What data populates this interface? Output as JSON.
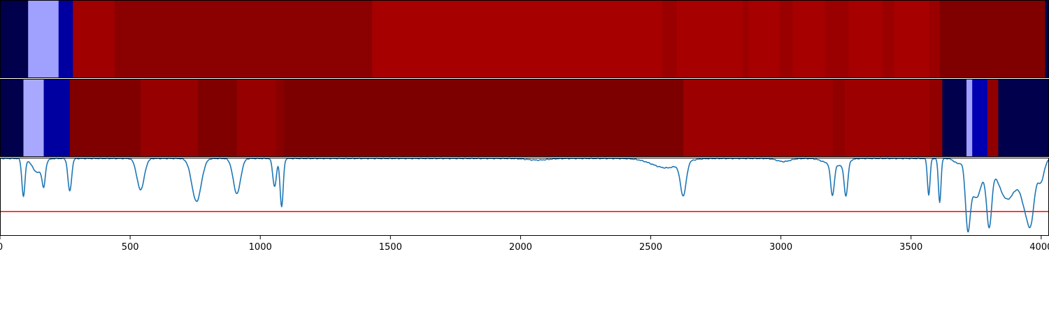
{
  "chart_data": [
    {
      "type": "heatmap",
      "x_range": [
        0,
        4030
      ],
      "segments": [
        {
          "from": 0,
          "to": 108,
          "color": "#00004c"
        },
        {
          "from": 108,
          "to": 225,
          "color": "#a0a0ff"
        },
        {
          "from": 225,
          "to": 280,
          "color": "#0000a0"
        },
        {
          "from": 280,
          "to": 440,
          "color": "#a00000"
        },
        {
          "from": 440,
          "to": 1430,
          "color": "#8b0000"
        },
        {
          "from": 1430,
          "to": 2545,
          "color": "#a60000"
        },
        {
          "from": 2545,
          "to": 2600,
          "color": "#9a0000"
        },
        {
          "from": 2600,
          "to": 2855,
          "color": "#a60000"
        },
        {
          "from": 2855,
          "to": 2875,
          "color": "#9a0000"
        },
        {
          "from": 2875,
          "to": 2995,
          "color": "#a60000"
        },
        {
          "from": 2995,
          "to": 3045,
          "color": "#9a0000"
        },
        {
          "from": 3045,
          "to": 3170,
          "color": "#a60000"
        },
        {
          "from": 3170,
          "to": 3260,
          "color": "#9a0000"
        },
        {
          "from": 3260,
          "to": 3390,
          "color": "#a60000"
        },
        {
          "from": 3390,
          "to": 3435,
          "color": "#9a0000"
        },
        {
          "from": 3435,
          "to": 3570,
          "color": "#a60000"
        },
        {
          "from": 3570,
          "to": 3610,
          "color": "#9a0000"
        },
        {
          "from": 3610,
          "to": 4015,
          "color": "#800000"
        },
        {
          "from": 4015,
          "to": 4030,
          "color": "#00004c"
        }
      ]
    },
    {
      "type": "heatmap",
      "x_range": [
        0,
        4030
      ],
      "segments": [
        {
          "from": 0,
          "to": 90,
          "color": "#00004c"
        },
        {
          "from": 90,
          "to": 168,
          "color": "#a8a8ff"
        },
        {
          "from": 168,
          "to": 268,
          "color": "#0000a0"
        },
        {
          "from": 268,
          "to": 540,
          "color": "#800000"
        },
        {
          "from": 540,
          "to": 760,
          "color": "#960000"
        },
        {
          "from": 760,
          "to": 910,
          "color": "#800000"
        },
        {
          "from": 910,
          "to": 1060,
          "color": "#960000"
        },
        {
          "from": 1060,
          "to": 1090,
          "color": "#8a0000"
        },
        {
          "from": 1090,
          "to": 2625,
          "color": "#7c0000"
        },
        {
          "from": 2625,
          "to": 3200,
          "color": "#9c0000"
        },
        {
          "from": 3200,
          "to": 3245,
          "color": "#900000"
        },
        {
          "from": 3245,
          "to": 3570,
          "color": "#9c0000"
        },
        {
          "from": 3570,
          "to": 3620,
          "color": "#900000"
        },
        {
          "from": 3620,
          "to": 3713,
          "color": "#00004c"
        },
        {
          "from": 3713,
          "to": 3735,
          "color": "#a0a0ff"
        },
        {
          "from": 3735,
          "to": 3793,
          "color": "#0000b0"
        },
        {
          "from": 3793,
          "to": 3835,
          "color": "#900000"
        },
        {
          "from": 3835,
          "to": 4030,
          "color": "#00004c"
        }
      ]
    },
    {
      "type": "line",
      "x_range": [
        0,
        4030
      ],
      "y_range": [
        0,
        1
      ],
      "ticks": [
        {
          "value": 0,
          "label": "0"
        },
        {
          "value": 500,
          "label": "500"
        },
        {
          "value": 1000,
          "label": "1000"
        },
        {
          "value": 1500,
          "label": "1500"
        },
        {
          "value": 2000,
          "label": "2000"
        },
        {
          "value": 2500,
          "label": "2500"
        },
        {
          "value": 3000,
          "label": "3000"
        },
        {
          "value": 3500,
          "label": "3500"
        },
        {
          "value": 4000,
          "label": "4000"
        }
      ],
      "threshold": {
        "value": 0.31,
        "color": "#ff0000"
      },
      "series_color": "#1f77b4",
      "baseline": 0.99,
      "dips": [
        {
          "center": 90,
          "depth": 0.48,
          "width": 6
        },
        {
          "center": 145,
          "depth": 0.18,
          "width": 20
        },
        {
          "center": 168,
          "depth": 0.28,
          "width": 6
        },
        {
          "center": 268,
          "depth": 0.42,
          "width": 7
        },
        {
          "center": 540,
          "depth": 0.4,
          "width": 14
        },
        {
          "center": 755,
          "depth": 0.55,
          "width": 18
        },
        {
          "center": 910,
          "depth": 0.45,
          "width": 14
        },
        {
          "center": 1055,
          "depth": 0.36,
          "width": 7
        },
        {
          "center": 1082,
          "depth": 0.62,
          "width": 6
        },
        {
          "center": 2065,
          "depth": 0.02,
          "width": 40
        },
        {
          "center": 2560,
          "depth": 0.12,
          "width": 55
        },
        {
          "center": 2625,
          "depth": 0.42,
          "width": 11
        },
        {
          "center": 3010,
          "depth": 0.04,
          "width": 25
        },
        {
          "center": 3180,
          "depth": 0.05,
          "width": 25
        },
        {
          "center": 3198,
          "depth": 0.4,
          "width": 7
        },
        {
          "center": 3250,
          "depth": 0.42,
          "width": 7
        },
        {
          "center": 3230,
          "depth": 0.08,
          "width": 25
        },
        {
          "center": 3568,
          "depth": 0.47,
          "width": 5
        },
        {
          "center": 3610,
          "depth": 0.56,
          "width": 5
        },
        {
          "center": 3680,
          "depth": 0.06,
          "width": 15
        },
        {
          "center": 3718,
          "depth": 0.76,
          "width": 9
        },
        {
          "center": 3750,
          "depth": 0.5,
          "width": 22
        },
        {
          "center": 3800,
          "depth": 0.78,
          "width": 10
        },
        {
          "center": 3870,
          "depth": 0.52,
          "width": 35
        },
        {
          "center": 3950,
          "depth": 0.7,
          "width": 22
        },
        {
          "center": 3962,
          "depth": 0.22,
          "width": 10
        },
        {
          "center": 4000,
          "depth": 0.25,
          "width": 12
        }
      ]
    }
  ]
}
